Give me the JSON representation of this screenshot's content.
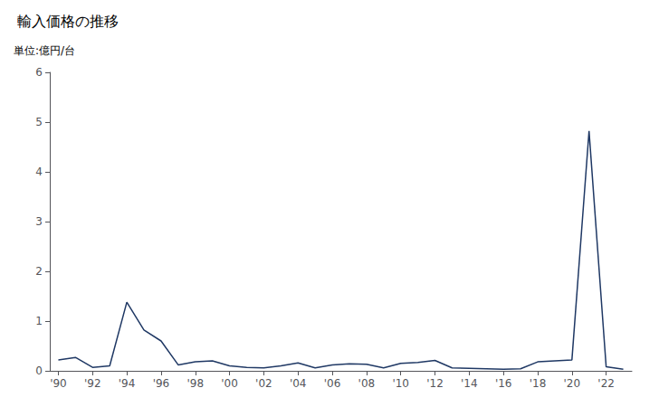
{
  "chart_data": {
    "type": "line",
    "title": "輸入価格の推移",
    "ylabel": "単位:億円/台",
    "x": [
      1990,
      1991,
      1992,
      1993,
      1994,
      1995,
      1996,
      1997,
      1998,
      1999,
      2000,
      2001,
      2002,
      2003,
      2004,
      2005,
      2006,
      2007,
      2008,
      2009,
      2010,
      2011,
      2012,
      2013,
      2014,
      2015,
      2016,
      2017,
      2018,
      2019,
      2020,
      2021,
      2022,
      2023
    ],
    "values": [
      0.22,
      0.27,
      0.07,
      0.1,
      1.38,
      0.82,
      0.6,
      0.12,
      0.18,
      0.2,
      0.1,
      0.07,
      0.06,
      0.1,
      0.16,
      0.06,
      0.12,
      0.14,
      0.13,
      0.06,
      0.15,
      0.17,
      0.21,
      0.06,
      0.05,
      0.04,
      0.03,
      0.04,
      0.18,
      0.2,
      0.22,
      4.82,
      0.08,
      0.03
    ],
    "color": "#1f3864",
    "xlim": [
      1989.5,
      2023.5
    ],
    "xticks": [
      {
        "value": 1990,
        "label": "'90"
      },
      {
        "value": 1992,
        "label": "'92"
      },
      {
        "value": 1994,
        "label": "'94"
      },
      {
        "value": 1996,
        "label": "'96"
      },
      {
        "value": 1998,
        "label": "'98"
      },
      {
        "value": 2000,
        "label": "'00"
      },
      {
        "value": 2002,
        "label": "'02"
      },
      {
        "value": 2004,
        "label": "'04"
      },
      {
        "value": 2006,
        "label": "'06"
      },
      {
        "value": 2008,
        "label": "'08"
      },
      {
        "value": 2010,
        "label": "'10"
      },
      {
        "value": 2012,
        "label": "'12"
      },
      {
        "value": 2014,
        "label": "'14"
      },
      {
        "value": 2016,
        "label": "'16"
      },
      {
        "value": 2018,
        "label": "'18"
      },
      {
        "value": 2020,
        "label": "'20"
      },
      {
        "value": 2022,
        "label": "'22"
      }
    ],
    "ylim": [
      0,
      6
    ],
    "yticks": [
      0,
      1,
      2,
      3,
      4,
      5,
      6
    ],
    "grid": false
  }
}
